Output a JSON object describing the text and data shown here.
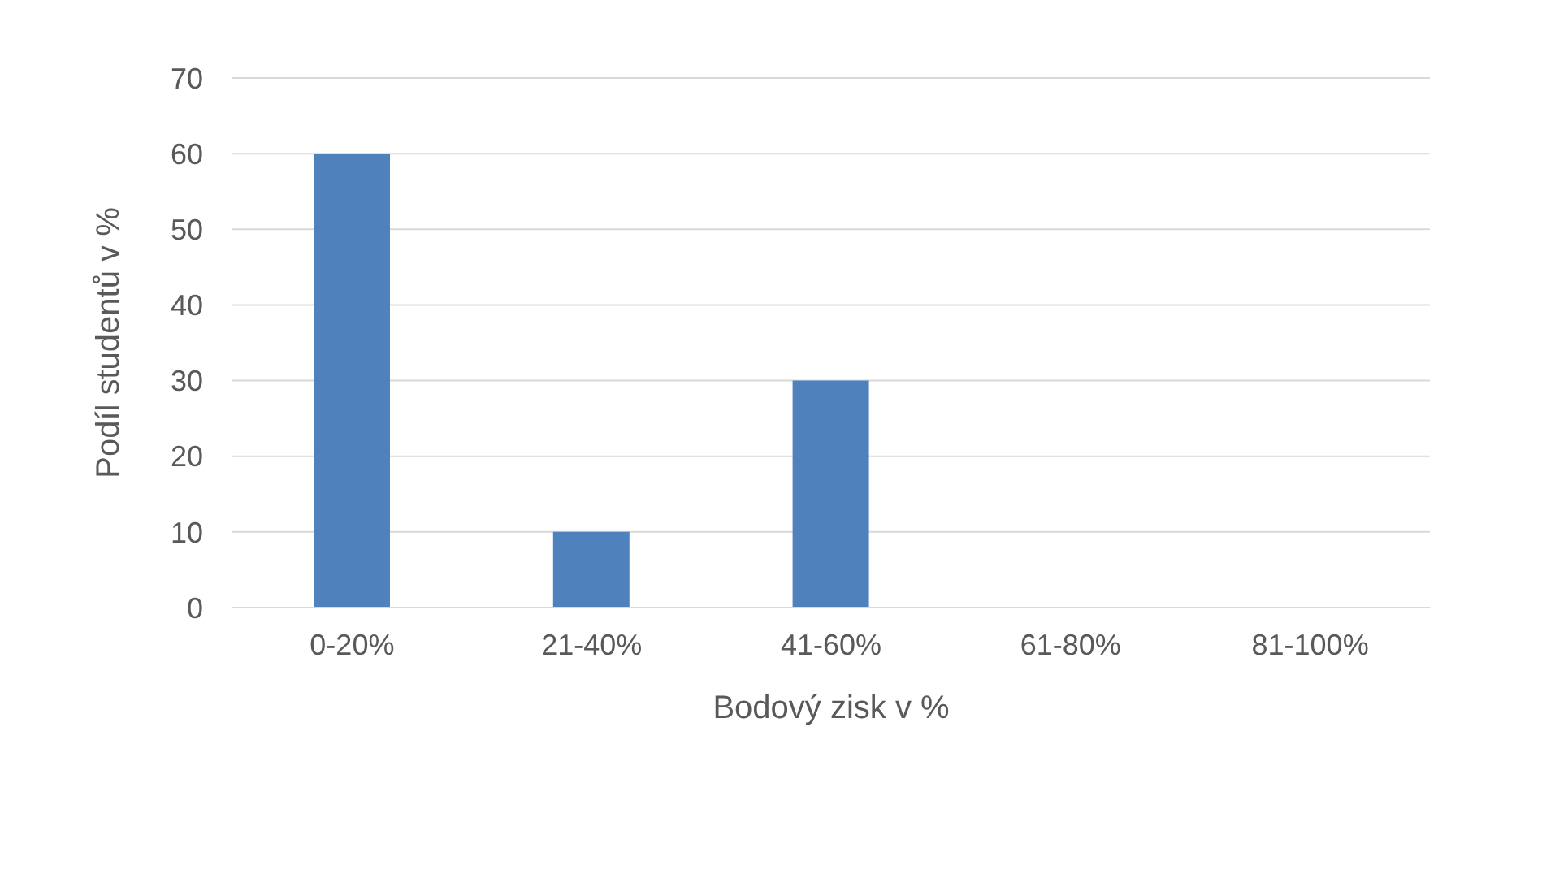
{
  "chart_data": {
    "type": "bar",
    "xlabel": "Bodový zisk v %",
    "ylabel": "Podíl studentů v %",
    "categories": [
      "0-20%",
      "21-40%",
      "41-60%",
      "61-80%",
      "81-100%"
    ],
    "values": [
      60,
      10,
      30,
      0,
      0
    ],
    "color": "#4f81bd",
    "ylim": [
      0,
      70
    ],
    "yticks": [
      0,
      10,
      20,
      30,
      40,
      50,
      60,
      70
    ],
    "grid": "y"
  }
}
